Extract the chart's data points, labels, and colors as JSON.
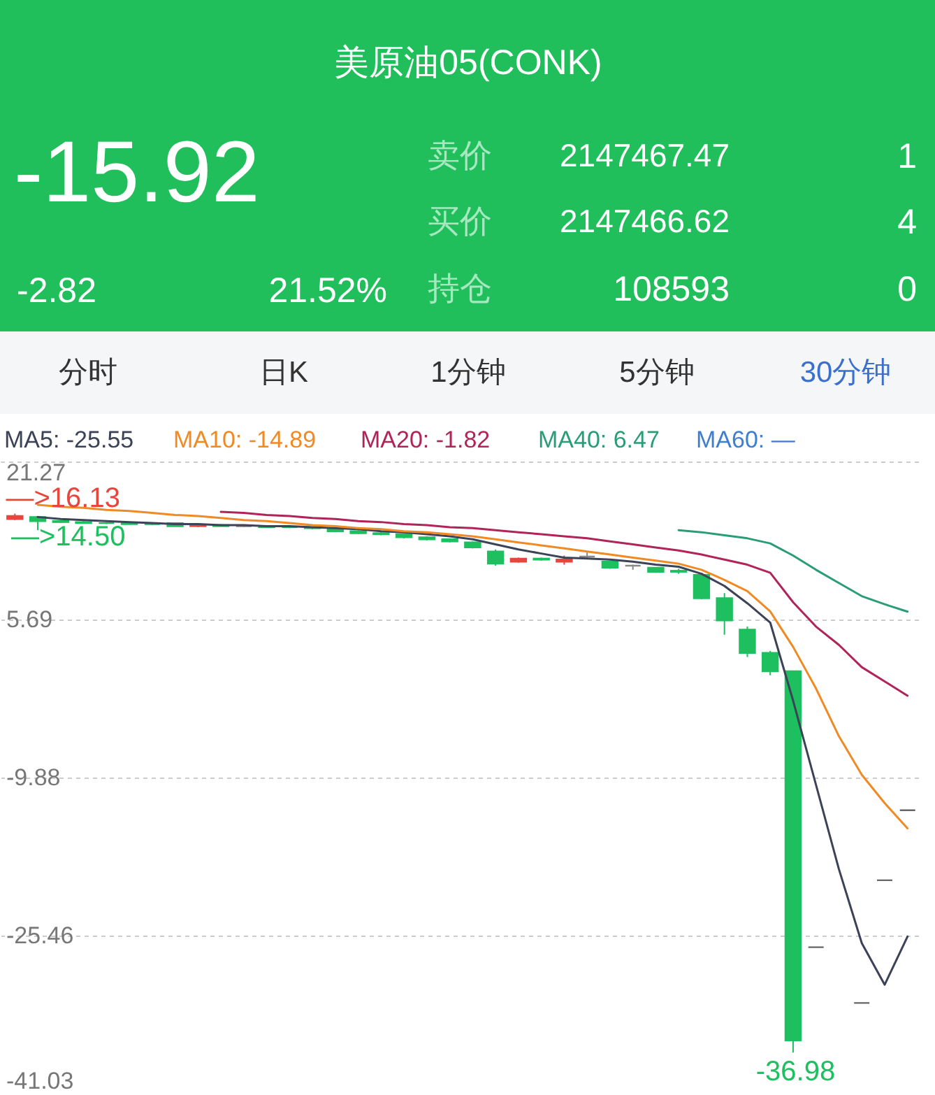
{
  "chart_data": {
    "type": "candlestick",
    "title": "美原油05(CONK)",
    "categories": [
      null,
      null,
      null,
      null,
      null,
      null,
      null,
      null,
      null,
      null,
      null,
      null,
      null,
      null,
      null,
      null,
      null,
      null,
      null,
      null,
      null,
      null,
      null,
      null,
      null,
      null,
      null,
      null,
      null,
      null,
      null,
      null,
      null,
      null,
      null,
      null,
      null,
      null,
      null,
      null
    ],
    "ohlc": [
      [
        15.6,
        16.13,
        15.5,
        15.9
      ],
      [
        15.8,
        15.8,
        14.5,
        15.4
      ],
      [
        15.4,
        15.5,
        15.2,
        15.3
      ],
      [
        15.3,
        15.4,
        15.2,
        15.2
      ],
      [
        15.2,
        15.3,
        15.1,
        15.2
      ],
      [
        15.2,
        15.3,
        15.1,
        15.1
      ],
      [
        15.1,
        15.2,
        15.0,
        15.1
      ],
      [
        15.2,
        15.2,
        14.9,
        14.9
      ],
      [
        14.9,
        15.1,
        14.8,
        15.0
      ],
      [
        15.0,
        15.1,
        14.9,
        14.9
      ],
      [
        14.9,
        15.0,
        14.8,
        14.9
      ],
      [
        14.9,
        15.0,
        14.8,
        14.8
      ],
      [
        14.8,
        14.9,
        14.7,
        14.8
      ],
      [
        14.8,
        14.8,
        14.6,
        14.7
      ],
      [
        14.7,
        14.7,
        14.3,
        14.4
      ],
      [
        14.4,
        14.5,
        14.1,
        14.2
      ],
      [
        14.2,
        14.3,
        14.0,
        14.1
      ],
      [
        14.1,
        14.2,
        13.7,
        13.8
      ],
      [
        13.8,
        13.9,
        13.5,
        13.6
      ],
      [
        13.6,
        13.6,
        13.3,
        13.4
      ],
      [
        13.3,
        13.4,
        12.7,
        12.8
      ],
      [
        12.4,
        12.6,
        11.0,
        11.2
      ],
      [
        11.4,
        11.8,
        11.3,
        11.7
      ],
      [
        11.7,
        11.8,
        11.5,
        11.6
      ],
      [
        11.4,
        12.0,
        11.1,
        11.6
      ],
      [
        11.9,
        12.3,
        11.7,
        11.9
      ],
      [
        11.4,
        11.5,
        10.7,
        10.8
      ],
      [
        11.0,
        11.1,
        10.6,
        11.0
      ],
      [
        10.8,
        10.8,
        10.3,
        10.4
      ],
      [
        10.5,
        10.7,
        10.2,
        10.4
      ],
      [
        10.1,
        10.3,
        7.7,
        7.8
      ],
      [
        7.8,
        8.3,
        4.2,
        5.6
      ],
      [
        4.7,
        5.0,
        2.0,
        2.4
      ],
      [
        2.4,
        2.6,
        0.2,
        0.6
      ],
      [
        0.6,
        0.6,
        -36.98,
        -35.8
      ],
      [
        -26.6,
        -26.6,
        -26.6,
        -26.6
      ],
      null,
      [
        -32.1,
        -32.1,
        -32.1,
        -32.1
      ],
      [
        -20.0,
        -20.0,
        -20.0,
        -20.0
      ],
      [
        -13.1,
        -13.1,
        -13.1,
        -13.1
      ]
    ],
    "colors": [
      "#e8453c",
      "#1dbf5f",
      "#1dbf5f",
      "#1dbf5f",
      "#1dbf5f",
      "#1dbf5f",
      "#1dbf5f",
      "#1dbf5f",
      "#e8453c",
      "#1dbf5f",
      "#888888",
      "#1dbf5f",
      "#1dbf5f",
      "#1dbf5f",
      "#1dbf5f",
      "#1dbf5f",
      "#1dbf5f",
      "#1dbf5f",
      "#1dbf5f",
      "#1dbf5f",
      "#1dbf5f",
      "#1dbf5f",
      "#e8453c",
      "#1dbf5f",
      "#e8453c",
      "#888888",
      "#1dbf5f",
      "#888888",
      "#1dbf5f",
      "#1dbf5f",
      "#1dbf5f",
      "#1dbf5f",
      "#1dbf5f",
      "#1dbf5f",
      "#1dbf5f",
      "#666666",
      null,
      "#666666",
      "#666666",
      "#666666"
    ],
    "series": [
      {
        "name": "MA5: -25.55",
        "color": "#3c4257",
        "type": "line",
        "values": [
          null,
          15.8,
          15.6,
          15.5,
          15.4,
          15.3,
          15.2,
          15.1,
          15.1,
          15.0,
          15.0,
          14.9,
          14.9,
          14.8,
          14.7,
          14.6,
          14.4,
          14.3,
          14.1,
          13.9,
          13.6,
          13.1,
          12.6,
          12.2,
          11.8,
          11.7,
          11.6,
          11.4,
          11.1,
          10.9,
          10.2,
          9.0,
          7.3,
          5.4,
          -2.3,
          -10.6,
          -18.9,
          -26.2,
          -30.3,
          -25.55
        ]
      },
      {
        "name": "MA10: -14.89",
        "color": "#f08a24",
        "type": "line",
        "values": [
          null,
          17.0,
          16.8,
          16.7,
          16.5,
          16.4,
          16.2,
          16.0,
          15.9,
          15.7,
          15.5,
          15.4,
          15.2,
          15.0,
          14.9,
          14.7,
          14.6,
          14.4,
          14.3,
          14.1,
          13.9,
          13.6,
          13.3,
          13.0,
          12.7,
          12.4,
          12.1,
          11.8,
          11.5,
          11.2,
          10.6,
          9.6,
          8.5,
          6.5,
          3.0,
          -1.1,
          -5.8,
          -9.6,
          -12.4,
          -14.89
        ]
      },
      {
        "name": "MA20: -1.82",
        "color": "#b0245a",
        "type": "line",
        "values": [
          null,
          null,
          null,
          null,
          null,
          null,
          null,
          null,
          null,
          16.3,
          16.2,
          16.0,
          15.9,
          15.7,
          15.6,
          15.4,
          15.3,
          15.1,
          15.0,
          14.8,
          14.7,
          14.5,
          14.3,
          14.1,
          13.9,
          13.7,
          13.4,
          13.1,
          12.8,
          12.5,
          12.1,
          11.6,
          11.1,
          10.3,
          7.4,
          5.0,
          3.2,
          1.0,
          -0.4,
          -1.82
        ]
      },
      {
        "name": "MA40: 6.47",
        "color": "#2a9d78",
        "type": "line",
        "values": [
          null,
          null,
          null,
          null,
          null,
          null,
          null,
          null,
          null,
          null,
          null,
          null,
          null,
          null,
          null,
          null,
          null,
          null,
          null,
          null,
          null,
          null,
          null,
          null,
          null,
          null,
          null,
          null,
          null,
          14.5,
          14.3,
          14.0,
          13.7,
          13.2,
          12.0,
          10.6,
          9.3,
          8.0,
          7.2,
          6.47
        ]
      }
    ],
    "ylim": [
      -41.03,
      21.27
    ],
    "yticks": [
      21.27,
      5.69,
      -9.88,
      -25.46,
      -41.03
    ],
    "tick_labels": "y",
    "grid": "y",
    "legend": "top left",
    "marker": "none",
    "line_style": "solid",
    "annotations": [
      "-15.92",
      "-2.82",
      "21.52%",
      "卖价",
      "2147467.47",
      "1",
      "买价",
      "2147466.62",
      "4",
      "持仓",
      "108593",
      "0",
      "分时",
      "日K",
      "1分钟",
      "5分钟",
      "30分钟",
      "MA60: —",
      {
        "text": "—>16.13",
        "y": 16.13
      },
      "—>14.50",
      {
        "text": "-36.98",
        "y": -36.98
      }
    ]
  }
}
